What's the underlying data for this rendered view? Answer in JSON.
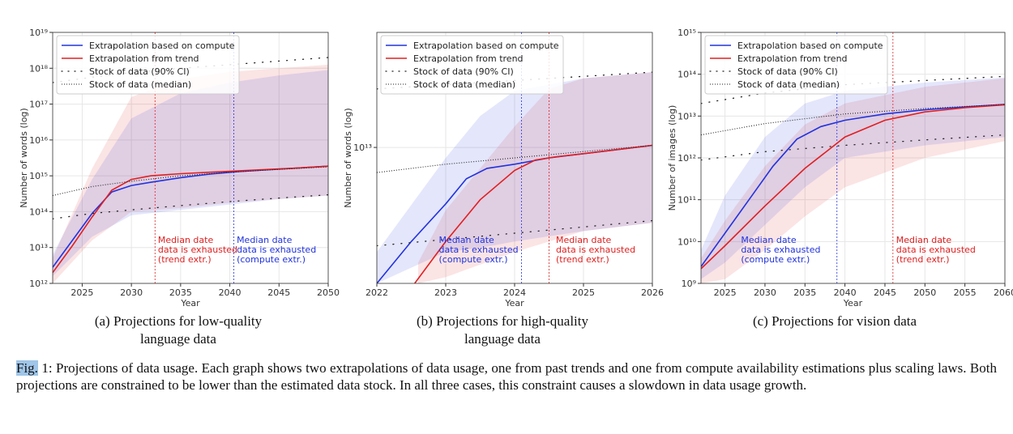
{
  "figure": {
    "label": "Fig.",
    "caption_rest": " 1: Projections of data usage. Each graph shows two extrapolations of data usage, one from past trends and one from compute availability estimations plus scaling laws. Both projections are constrained to be lower than the estimated data stock. In all three cases, this constraint causes a slowdown in data usage growth."
  },
  "colors": {
    "compute": "#2233dd",
    "trend": "#e02020",
    "stock": "#222222",
    "grid": "#e6e6e6"
  },
  "chart_data": [
    {
      "id": "a",
      "type": "line",
      "caption_line1": "(a) Projections for low-quality",
      "caption_line2": "language data",
      "xlabel": "Year",
      "ylabel": "Number of words (log)",
      "xlim": [
        2022,
        2050
      ],
      "ylim_log10": [
        12,
        19
      ],
      "xticks": [
        2025,
        2030,
        2035,
        2040,
        2045,
        2050
      ],
      "xtick_labels": [
        "2025",
        "2030",
        "2035",
        "2040",
        "2045",
        "2050"
      ],
      "yticks_log10": [
        12,
        13,
        14,
        15,
        16,
        17,
        18,
        19
      ],
      "ytick_labels": [
        "10¹²",
        "10¹³",
        "10¹⁴",
        "10¹⁵",
        "10¹⁶",
        "10¹⁷",
        "10¹⁸",
        "10¹⁹"
      ],
      "legend": [
        "Extrapolation based on compute",
        "Extrapolation from trend",
        "Stock of data (90% CI)",
        "Stock of data (median)"
      ],
      "series": [
        {
          "name": "Extrapolation based on compute",
          "x": [
            2022,
            2024,
            2026,
            2028,
            2030,
            2032,
            2035,
            2038,
            2041,
            2044,
            2047,
            2050
          ],
          "log10_y": [
            12.45,
            13.2,
            13.95,
            14.55,
            14.73,
            14.82,
            14.95,
            15.05,
            15.12,
            15.17,
            15.22,
            15.27
          ]
        },
        {
          "name": "Extrapolation from trend",
          "x": [
            2022,
            2024,
            2026,
            2028,
            2030,
            2032,
            2035,
            2038,
            2041,
            2044,
            2047,
            2050
          ],
          "log10_y": [
            12.3,
            13.05,
            13.85,
            14.6,
            14.9,
            15.0,
            15.06,
            15.1,
            15.14,
            15.18,
            15.22,
            15.27
          ]
        },
        {
          "name": "Stock of data (median)",
          "x": [
            2022,
            2026,
            2030,
            2035,
            2040,
            2045,
            2050
          ],
          "log10_y": [
            14.45,
            14.7,
            14.85,
            15.0,
            15.1,
            15.18,
            15.25
          ]
        },
        {
          "name": "Stock of data (90% CI) lower",
          "x": [
            2022,
            2026,
            2030,
            2035,
            2040,
            2045,
            2050
          ],
          "log10_y": [
            13.8,
            13.95,
            14.05,
            14.17,
            14.28,
            14.38,
            14.47
          ]
        },
        {
          "name": "Stock of data (90% CI) upper",
          "x": [
            2022,
            2026,
            2030,
            2035,
            2040,
            2045,
            2050
          ],
          "log10_y": [
            17.6,
            17.75,
            17.88,
            18.0,
            18.1,
            18.2,
            18.3
          ]
        }
      ],
      "band_compute": {
        "x": [
          2022,
          2026,
          2030,
          2035,
          2040,
          2045,
          2050
        ],
        "lo": [
          12.2,
          13.3,
          13.9,
          14.05,
          14.2,
          14.35,
          14.45
        ],
        "hi": [
          12.8,
          14.9,
          16.6,
          17.3,
          17.6,
          17.8,
          17.95
        ]
      },
      "band_trend": {
        "x": [
          2022,
          2026,
          2030,
          2035,
          2040,
          2045,
          2050
        ],
        "lo": [
          12.0,
          13.2,
          14.0,
          14.1,
          14.25,
          14.35,
          14.45
        ],
        "hi": [
          12.7,
          15.2,
          17.2,
          17.7,
          17.9,
          18.0,
          18.1
        ]
      },
      "median_lines": {
        "trend": 2032.4,
        "compute": 2040.4
      },
      "annotations": [
        {
          "x": 2032.7,
          "lines": [
            "Median date",
            "data is exhausted",
            "(trend extr.)"
          ],
          "color": "trend"
        },
        {
          "x": 2040.7,
          "lines": [
            "Median date",
            "data is exhausted",
            "(compute extr.)"
          ],
          "color": "compute"
        }
      ]
    },
    {
      "id": "b",
      "type": "line",
      "caption_line1": "(b) Projections for high-quality",
      "caption_line2": "language data",
      "xlabel": "Year",
      "ylabel": "Number of words (log)",
      "xlim": [
        2022,
        2026
      ],
      "ylim_log10": [
        12.35,
        13.55
      ],
      "xticks": [
        2022,
        2023,
        2024,
        2025,
        2026
      ],
      "xtick_labels": [
        "2022",
        "2023",
        "2024",
        "2025",
        "2026"
      ],
      "yticks_log10": [
        13
      ],
      "ytick_labels": [
        "10¹³"
      ],
      "legend": [
        "Extrapolation based on compute",
        "Extrapolation from trend",
        "Stock of data (90% CI)",
        "Stock of data (median)"
      ],
      "series": [
        {
          "name": "Extrapolation based on compute",
          "x": [
            2022,
            2022.5,
            2023,
            2023.3,
            2023.6,
            2024,
            2024.5,
            2025,
            2025.5,
            2026
          ],
          "log10_y": [
            12.35,
            12.55,
            12.73,
            12.85,
            12.9,
            12.92,
            12.95,
            12.97,
            12.99,
            13.01
          ]
        },
        {
          "name": "Extrapolation from trend",
          "x": [
            2022.55,
            2023,
            2023.5,
            2024,
            2024.3,
            2024.6,
            2025,
            2025.5,
            2026
          ],
          "log10_y": [
            12.35,
            12.55,
            12.75,
            12.89,
            12.94,
            12.955,
            12.97,
            12.99,
            13.01
          ]
        },
        {
          "name": "Stock of data (median)",
          "x": [
            2022,
            2023,
            2024,
            2025,
            2026
          ],
          "log10_y": [
            12.88,
            12.92,
            12.95,
            12.98,
            13.01
          ]
        },
        {
          "name": "Stock of data (90% CI) lower",
          "x": [
            2022,
            2023,
            2024,
            2025,
            2026
          ],
          "log10_y": [
            12.53,
            12.56,
            12.59,
            12.62,
            12.65
          ]
        },
        {
          "name": "Stock of data (90% CI) upper",
          "x": [
            2022,
            2023,
            2024,
            2025,
            2026
          ],
          "log10_y": [
            13.28,
            13.3,
            13.32,
            13.34,
            13.36
          ]
        }
      ],
      "band_compute": {
        "x": [
          2022,
          2023,
          2023.5,
          2024,
          2025,
          2026
        ],
        "lo": [
          12.35,
          12.5,
          12.52,
          12.55,
          12.6,
          12.64
        ],
        "hi": [
          12.5,
          12.95,
          13.15,
          13.27,
          13.33,
          13.36
        ]
      },
      "band_trend": {
        "x": [
          2022.6,
          2023,
          2024,
          2024.5,
          2025,
          2026
        ],
        "lo": [
          12.35,
          12.38,
          12.5,
          12.55,
          12.6,
          12.64
        ],
        "hi": [
          12.45,
          12.7,
          13.1,
          13.28,
          13.33,
          13.36
        ]
      },
      "median_lines": {
        "compute": 2024.1,
        "trend": 2024.5
      },
      "annotations": [
        {
          "x": 2022.9,
          "lines": [
            "Median date",
            "data is exhausted",
            "(compute extr.)"
          ],
          "color": "compute"
        },
        {
          "x": 2024.6,
          "lines": [
            "Median date",
            "data is exhausted",
            "(trend extr.)"
          ],
          "color": "trend"
        }
      ]
    },
    {
      "id": "c",
      "type": "line",
      "caption_line1": "(c) Projections for vision data",
      "caption_line2": "",
      "xlabel": "Year",
      "ylabel": "Number of images (log)",
      "xlim": [
        2022,
        2060
      ],
      "ylim_log10": [
        9,
        15
      ],
      "xticks": [
        2025,
        2030,
        2035,
        2040,
        2045,
        2050,
        2055,
        2060
      ],
      "xtick_labels": [
        "2025",
        "2030",
        "2035",
        "2040",
        "2045",
        "2050",
        "2055",
        "2060"
      ],
      "yticks_log10": [
        9,
        10,
        11,
        12,
        13,
        14,
        15
      ],
      "ytick_labels": [
        "10⁹",
        "10¹⁰",
        "10¹¹",
        "10¹²",
        "10¹³",
        "10¹⁴",
        "10¹⁵"
      ],
      "legend": [
        "Extrapolation based on compute",
        "Extrapolation from trend",
        "Stock of data (90% CI)",
        "Stock of data (median)"
      ],
      "series": [
        {
          "name": "Extrapolation based on compute",
          "x": [
            2022,
            2025,
            2028,
            2031,
            2034,
            2037,
            2040,
            2045,
            2050,
            2055,
            2060
          ],
          "log10_y": [
            9.4,
            10.2,
            11.0,
            11.8,
            12.45,
            12.75,
            12.9,
            13.05,
            13.15,
            13.22,
            13.28
          ]
        },
        {
          "name": "Extrapolation from trend",
          "x": [
            2022,
            2025,
            2030,
            2035,
            2040,
            2045,
            2050,
            2055,
            2060
          ],
          "log10_y": [
            9.35,
            9.9,
            10.85,
            11.75,
            12.5,
            12.9,
            13.1,
            13.2,
            13.27
          ]
        },
        {
          "name": "Stock of data (median)",
          "x": [
            2022,
            2030,
            2040,
            2050,
            2060
          ],
          "log10_y": [
            12.55,
            12.82,
            13.05,
            13.18,
            13.28
          ]
        },
        {
          "name": "Stock of data (90% CI) lower",
          "x": [
            2022,
            2030,
            2040,
            2050,
            2060
          ],
          "log10_y": [
            11.95,
            12.15,
            12.3,
            12.43,
            12.55
          ]
        },
        {
          "name": "Stock of data (90% CI) upper",
          "x": [
            2022,
            2030,
            2040,
            2050,
            2060
          ],
          "log10_y": [
            13.3,
            13.55,
            13.75,
            13.85,
            13.95
          ]
        }
      ],
      "band_compute": {
        "x": [
          2022,
          2025,
          2030,
          2035,
          2040,
          2050,
          2060
        ],
        "lo": [
          9.1,
          9.5,
          10.4,
          11.3,
          12.0,
          12.3,
          12.5
        ],
        "hi": [
          9.8,
          11.1,
          12.5,
          13.3,
          13.6,
          13.8,
          13.92
        ]
      },
      "band_trend": {
        "x": [
          2022,
          2025,
          2030,
          2035,
          2040,
          2050,
          2060
        ],
        "lo": [
          9.0,
          9.1,
          9.8,
          10.6,
          11.3,
          12.0,
          12.4
        ],
        "hi": [
          9.6,
          10.5,
          11.8,
          12.8,
          13.3,
          13.7,
          13.9
        ]
      },
      "median_lines": {
        "compute": 2039.0,
        "trend": 2046.0
      },
      "annotations": [
        {
          "x": 2027.0,
          "lines": [
            "Median date",
            "data is exhausted",
            "(compute extr.)"
          ],
          "color": "compute"
        },
        {
          "x": 2046.4,
          "lines": [
            "Median date",
            "data is exhausted",
            "(trend extr.)"
          ],
          "color": "trend"
        }
      ]
    }
  ]
}
